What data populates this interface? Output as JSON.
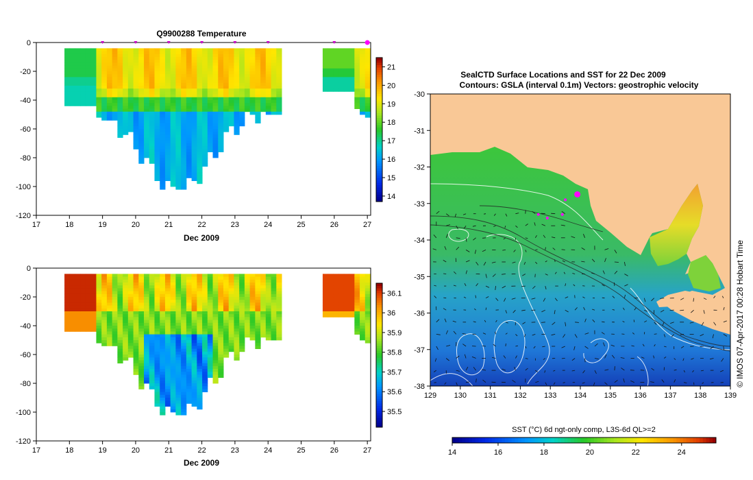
{
  "chart_data": [
    {
      "type": "heatmap",
      "title": "Q9900288  Temperature",
      "xlabel": "Dec 2009",
      "ylabel": "",
      "xlim": [
        17,
        27.1
      ],
      "ylim": [
        -120,
        0
      ],
      "x_ticks": [
        17,
        18,
        19,
        20,
        21,
        22,
        23,
        24,
        25,
        26,
        27
      ],
      "y_ticks": [
        0,
        -20,
        -40,
        -60,
        -80,
        -100,
        -120
      ],
      "colorbar": {
        "min": 13.7,
        "max": 21.5,
        "ticks": [
          14,
          15,
          16,
          17,
          18,
          19,
          20,
          21
        ]
      },
      "profile_markers": [
        19,
        20,
        21,
        22,
        23,
        24,
        26,
        27
      ],
      "highlight_marker": 27
    },
    {
      "type": "heatmap",
      "title": "",
      "xlabel": "Dec 2009",
      "ylabel": "",
      "xlim": [
        17,
        27.1
      ],
      "ylim": [
        -120,
        0
      ],
      "x_ticks": [
        17,
        18,
        19,
        20,
        21,
        22,
        23,
        24,
        25,
        26,
        27
      ],
      "y_ticks": [
        0,
        -20,
        -40,
        -60,
        -80,
        -100,
        -120
      ],
      "colorbar": {
        "min": 35.42,
        "max": 36.15,
        "ticks": [
          35.5,
          35.6,
          35.7,
          35.8,
          35.9,
          36,
          36.1
        ]
      }
    },
    {
      "type": "heatmap",
      "title": "SealCTD Surface Locations and SST for 22 Dec 2009",
      "subtitle": "Contours: GSLA (interval 0.1m) Vectors: geostrophic velocity",
      "xlabel": "",
      "ylabel": "",
      "xlim": [
        129,
        139
      ],
      "ylim": [
        -38,
        -30
      ],
      "x_ticks": [
        129,
        130,
        131,
        132,
        133,
        134,
        135,
        136,
        137,
        138,
        139
      ],
      "y_ticks": [
        -30,
        -31,
        -32,
        -33,
        -34,
        -35,
        -36,
        -37,
        -38
      ],
      "colorbar": {
        "label": "SST (°C) 6d ngt-only comp, L3S-6d QL>=2",
        "min": 14,
        "max": 25.5,
        "ticks": [
          14,
          16,
          18,
          20,
          22,
          24
        ]
      },
      "seal_locations": [
        [
          133.9,
          -32.75
        ],
        [
          133.5,
          -32.9
        ],
        [
          132.6,
          -33.3
        ],
        [
          132.9,
          -33.4
        ],
        [
          133.4,
          -33.3
        ]
      ],
      "credit": "© IMOS 07-Apr-2017 00:28 Hobart Time"
    }
  ]
}
